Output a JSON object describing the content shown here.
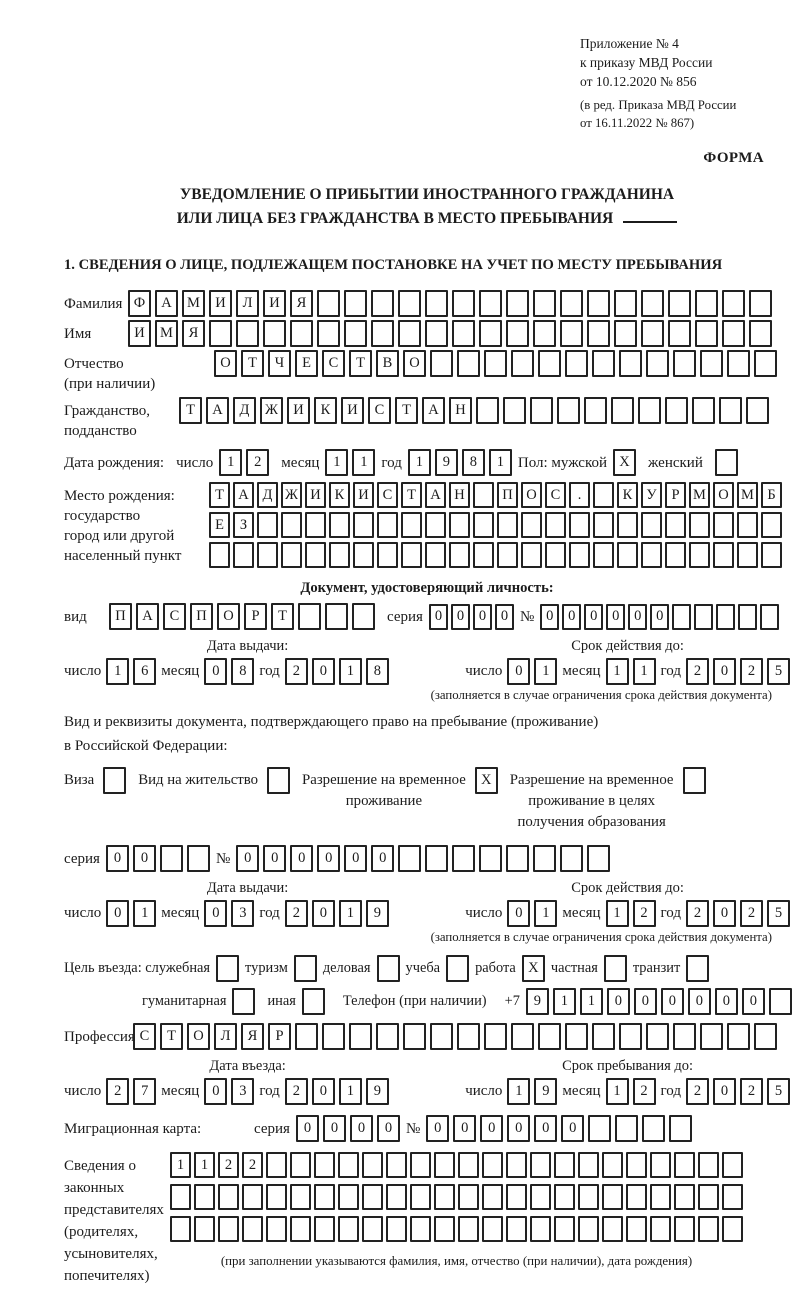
{
  "header": {
    "line1": "Приложение № 4",
    "line2": "к приказу МВД России",
    "line3": "от 10.12.2020 № 856",
    "line4": "(в ред. Приказа МВД России",
    "line5": "от 16.11.2022 № 867)",
    "form_label": "ФОРМА"
  },
  "title": {
    "line1": "УВЕДОМЛЕНИЕ О ПРИБЫТИИ ИНОСТРАННОГО ГРАЖДАНИНА",
    "line2": "ИЛИ ЛИЦА БЕЗ ГРАЖДАНСТВА В МЕСТО ПРЕБЫВАНИЯ"
  },
  "section1_heading": "1. СВЕДЕНИЯ О ЛИЦЕ, ПОДЛЕЖАЩЕМ ПОСТАНОВКЕ НА УЧЕТ ПО МЕСТУ ПРЕБЫВАНИЯ",
  "labels": {
    "surname": "Фамилия",
    "name": "Имя",
    "patronymic_1": "Отчество",
    "patronymic_2": "(при наличии)",
    "citizenship_1": "Гражданство,",
    "citizenship_2": "подданство",
    "birth_date": "Дата рождения:",
    "day": "число",
    "month": "месяц",
    "year": "год",
    "sex": "Пол: мужской",
    "female": "женский",
    "birth_place_1": "Место рождения:",
    "birth_place_2": "государство",
    "birth_place_3": "город или другой",
    "birth_place_4": "населенный пункт",
    "id_doc_heading": "Документ, удостоверяющий личность:",
    "kind": "вид",
    "series": "серия",
    "number": "№",
    "issue_date": "Дата выдачи:",
    "valid_until": "Срок действия до:",
    "limit_note": "(заполняется в случае ограничения срока действия документа)",
    "residence_line1": "Вид и реквизиты документа, подтверждающего право на пребывание (проживание)",
    "residence_line2": "в Российской Федерации:",
    "visa": "Виза",
    "vnj": "Вид на жительство",
    "rvp_1": "Разрешение на временное",
    "rvp_2": "проживание",
    "rvp_edu_1": "Разрешение на временное",
    "rvp_edu_2": "проживание в целях",
    "rvp_edu_3": "получения образования",
    "goal": "Цель въезда: служебная",
    "tourism": "туризм",
    "business": "деловая",
    "study": "учеба",
    "work": "работа",
    "private": "частная",
    "transit": "транзит",
    "humanitarian": "гуманитарная",
    "other": "иная",
    "phone_label": "Телефон (при наличии)",
    "phone_prefix": "+7",
    "profession": "Профессия",
    "entry_date": "Дата въезда:",
    "stay_until": "Срок пребывания до:",
    "migration_card": "Миграционная карта:",
    "rep_1": "Сведения о",
    "rep_2": "законных",
    "rep_3": "представителях",
    "rep_4": "(родителях,",
    "rep_5": "усыновителях,",
    "rep_6": "попечителях)",
    "rep_note": "(при заполнении указываются фамилия, имя, отчество (при наличии), дата рождения)"
  },
  "grids": {
    "surname": {
      "value": "ФАМИЛИЯ",
      "len": 24
    },
    "name": {
      "value": "ИМЯ",
      "len": 24
    },
    "patronymic": {
      "value": "ОТЧЕСТВО",
      "len": 21
    },
    "citizenship": {
      "value": "ТАДЖИКИСТАН",
      "len": 22
    },
    "birth_day": {
      "value": "12",
      "len": 2
    },
    "birth_month": {
      "value": "11",
      "len": 2
    },
    "birth_year": {
      "value": "1981",
      "len": 4
    },
    "birth_place_row1": {
      "value": "ТАДЖИКИСТАН ПОС. КУРМОМБ",
      "len": 24
    },
    "birth_place_row2": {
      "value": "ЕЗ",
      "len": 24
    },
    "birth_place_row3": {
      "value": "",
      "len": 24
    },
    "doc_kind": {
      "value": "ПАСПОРТ",
      "len": 10
    },
    "doc_series": {
      "value": "0000",
      "len": 4
    },
    "doc_number": {
      "value": "000000",
      "len": 11
    },
    "doc_issue_day": {
      "value": "16",
      "len": 2
    },
    "doc_issue_month": {
      "value": "08",
      "len": 2
    },
    "doc_issue_year": {
      "value": "2018",
      "len": 4
    },
    "doc_valid_day": {
      "value": "01",
      "len": 2
    },
    "doc_valid_month": {
      "value": "11",
      "len": 2
    },
    "doc_valid_year": {
      "value": "2025",
      "len": 4
    },
    "res_series": {
      "value": "00",
      "len": 4
    },
    "res_number": {
      "value": "000000",
      "len": 14
    },
    "res_issue_day": {
      "value": "01",
      "len": 2
    },
    "res_issue_month": {
      "value": "03",
      "len": 2
    },
    "res_issue_year": {
      "value": "2019",
      "len": 4
    },
    "res_valid_day": {
      "value": "01",
      "len": 2
    },
    "res_valid_month": {
      "value": "12",
      "len": 2
    },
    "res_valid_year": {
      "value": "2025",
      "len": 4
    },
    "phone": {
      "value": "911000000",
      "len": 10
    },
    "profession": {
      "value": "СТОЛЯР",
      "len": 24
    },
    "entry_day": {
      "value": "27",
      "len": 2
    },
    "entry_month": {
      "value": "03",
      "len": 2
    },
    "entry_year": {
      "value": "2019",
      "len": 4
    },
    "stay_day": {
      "value": "19",
      "len": 2
    },
    "stay_month": {
      "value": "12",
      "len": 2
    },
    "stay_year": {
      "value": "2025",
      "len": 4
    },
    "mig_series": {
      "value": "0000",
      "len": 4
    },
    "mig_number": {
      "value": "000000",
      "len": 10
    },
    "rep_row1": {
      "value": "1122",
      "len": 24
    },
    "rep_row2": {
      "value": "",
      "len": 24
    },
    "rep_row3": {
      "value": "",
      "len": 24
    }
  },
  "checks": {
    "male": "X",
    "female": "",
    "visa": "",
    "vnj": "",
    "rvp": "X",
    "rvp_edu": "",
    "official": "",
    "tourism": "",
    "business": "",
    "study": "",
    "work": "X",
    "private": "",
    "transit": "",
    "humanitarian": "",
    "other": ""
  }
}
